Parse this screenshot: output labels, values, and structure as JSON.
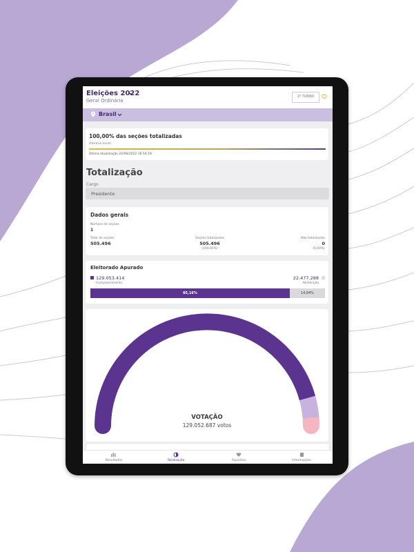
{
  "header": {
    "title": "Eleições 2022",
    "subtitle": "Geral Ordinária",
    "round_button": "1º TURNO"
  },
  "location": "Brasil",
  "status": {
    "title": "100,00% das seções totalizadas",
    "note": "(Horário local)",
    "updated": "Última atualização 22/09/2022 16:14:19"
  },
  "section_title": "Totalização",
  "cargo": {
    "label": "Cargo",
    "value": "Presidente"
  },
  "dados_gerais": {
    "title": "Dados gerais",
    "turnos": {
      "label": "Número de seções",
      "value": "1"
    },
    "total": {
      "label": "Total de seções",
      "value": "505.496"
    },
    "totalizadas": {
      "label": "Seções totalizadas",
      "value": "505.496",
      "pct": "(100,00%)"
    },
    "nao_totalizadas": {
      "label": "Não totalizadas",
      "value": "0",
      "pct": "(0,00%)"
    }
  },
  "eleitorado": {
    "title": "Eleitorado Apurado",
    "comparecimento": {
      "value": "129.053.414",
      "label": "Comparecimento",
      "pct": "85,16%"
    },
    "abstencao": {
      "value": "22.477.288",
      "label": "Abstenção",
      "pct": "14,84%"
    }
  },
  "votacao": {
    "title": "VOTAÇÃO",
    "votes": "129.052.687 votos"
  },
  "nav": [
    "Resultados",
    "Totalização",
    "Favoritos",
    "Informações"
  ]
}
